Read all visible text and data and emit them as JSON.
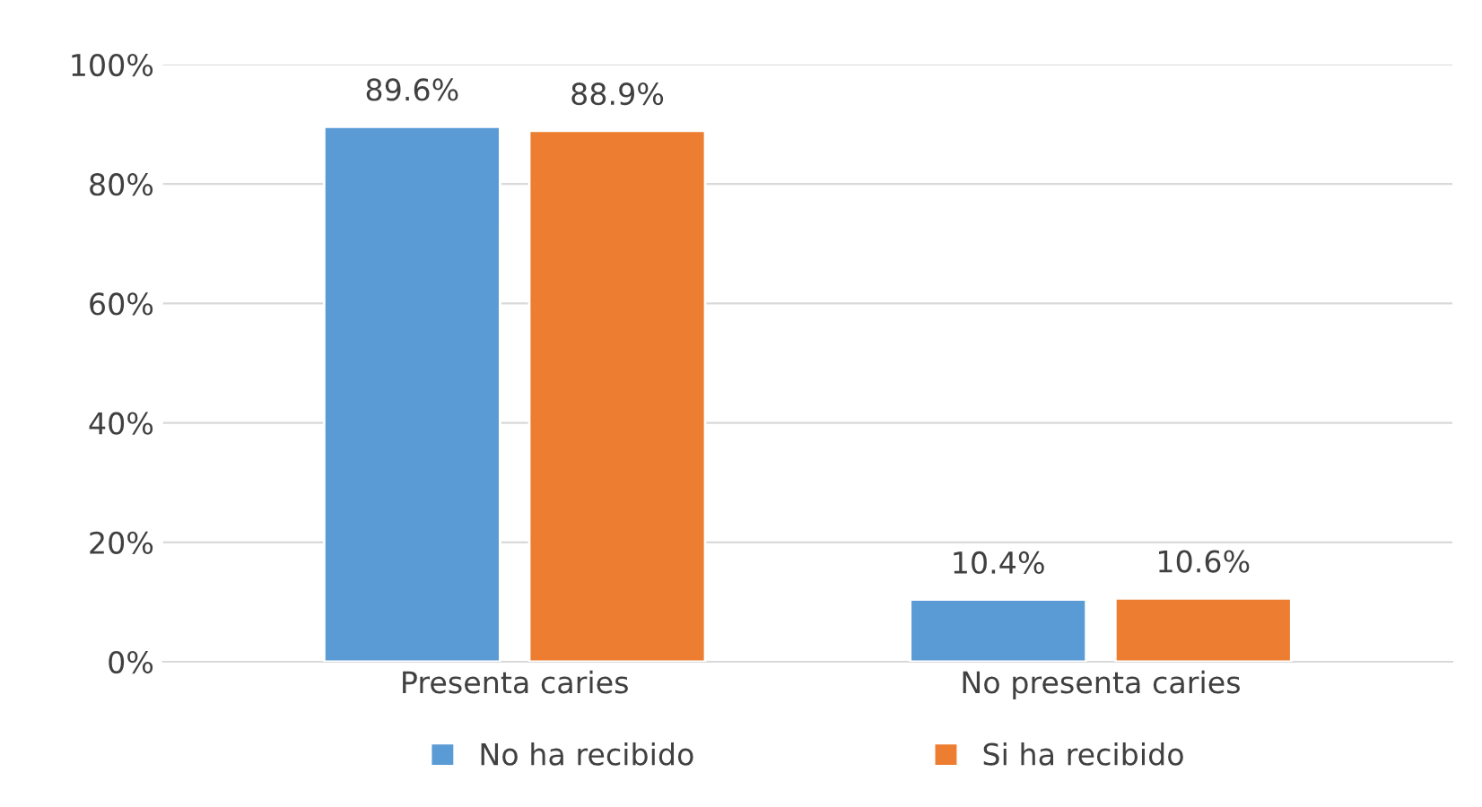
{
  "chart_data": {
    "type": "bar",
    "categories": [
      "Presenta caries",
      "No presenta caries"
    ],
    "series": [
      {
        "name": "No ha recibido",
        "color": "#5b9bd5",
        "values": [
          89.6,
          10.4
        ],
        "value_labels": [
          "89.6%",
          "10.4%"
        ]
      },
      {
        "name": "Si ha recibido",
        "color": "#ed7d31",
        "values": [
          88.9,
          10.6
        ],
        "value_labels": [
          "88.9%",
          "10.6%"
        ]
      }
    ],
    "ylim": [
      0,
      100
    ],
    "yticks": [
      {
        "value": 0,
        "label": "0%"
      },
      {
        "value": 20,
        "label": "20%"
      },
      {
        "value": 40,
        "label": "40%"
      },
      {
        "value": 60,
        "label": "60%"
      },
      {
        "value": 80,
        "label": "80%"
      },
      {
        "value": 100,
        "label": "100%"
      }
    ],
    "grid": "y",
    "legend": "bottom"
  }
}
